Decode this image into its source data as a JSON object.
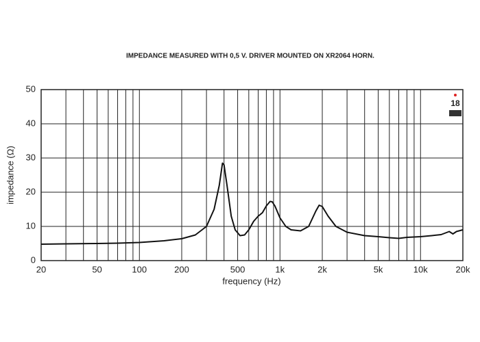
{
  "chart_data": {
    "type": "line",
    "title": "IMPEDANCE MEASURED WITH 0,5 V. DRIVER MOUNTED ON XR2064 HORN.",
    "xlabel": "frequency (Hz)",
    "ylabel": "impedance (Ω)",
    "logo": "18",
    "xscale": "log",
    "grid": true,
    "xlim": [
      20,
      20000
    ],
    "ylim": [
      0,
      50
    ],
    "yticks": [
      0,
      10,
      20,
      30,
      40,
      50
    ],
    "xticks": [
      20,
      50,
      100,
      200,
      500,
      {
        "value": 1000,
        "label": "1k"
      },
      {
        "value": 2000,
        "label": "2k"
      },
      {
        "value": 5000,
        "label": "5k"
      },
      {
        "value": 10000,
        "label": "10k"
      },
      {
        "value": 20000,
        "label": "20k"
      }
    ],
    "xminor_ticks": [
      30,
      40,
      60,
      70,
      80,
      90,
      300,
      400,
      600,
      700,
      800,
      900,
      3000,
      4000,
      6000,
      7000,
      8000,
      9000
    ],
    "series": [
      {
        "name": "impedance",
        "color": "#111111",
        "x": [
          20,
          30,
          50,
          70,
          100,
          150,
          200,
          250,
          300,
          340,
          370,
          390,
          400,
          420,
          450,
          480,
          520,
          560,
          600,
          650,
          700,
          750,
          800,
          850,
          880,
          920,
          1000,
          1100,
          1200,
          1400,
          1600,
          1800,
          1900,
          2000,
          2200,
          2500,
          3000,
          4000,
          5000,
          6000,
          7000,
          8000,
          10000,
          12000,
          14000,
          16000,
          17000,
          18000,
          20000
        ],
        "values": [
          4.8,
          4.9,
          5.0,
          5.1,
          5.3,
          5.8,
          6.4,
          7.5,
          10,
          15,
          22,
          28.5,
          28,
          22,
          13,
          9,
          7.3,
          7.5,
          9,
          11.5,
          13,
          14,
          16,
          17.3,
          17.2,
          16,
          12.5,
          10,
          9,
          8.7,
          10,
          14.5,
          16.2,
          15.8,
          13,
          10,
          8.3,
          7.3,
          7,
          6.7,
          6.5,
          6.8,
          7.0,
          7.3,
          7.6,
          8.5,
          7.8,
          8.5,
          9
        ]
      }
    ]
  }
}
